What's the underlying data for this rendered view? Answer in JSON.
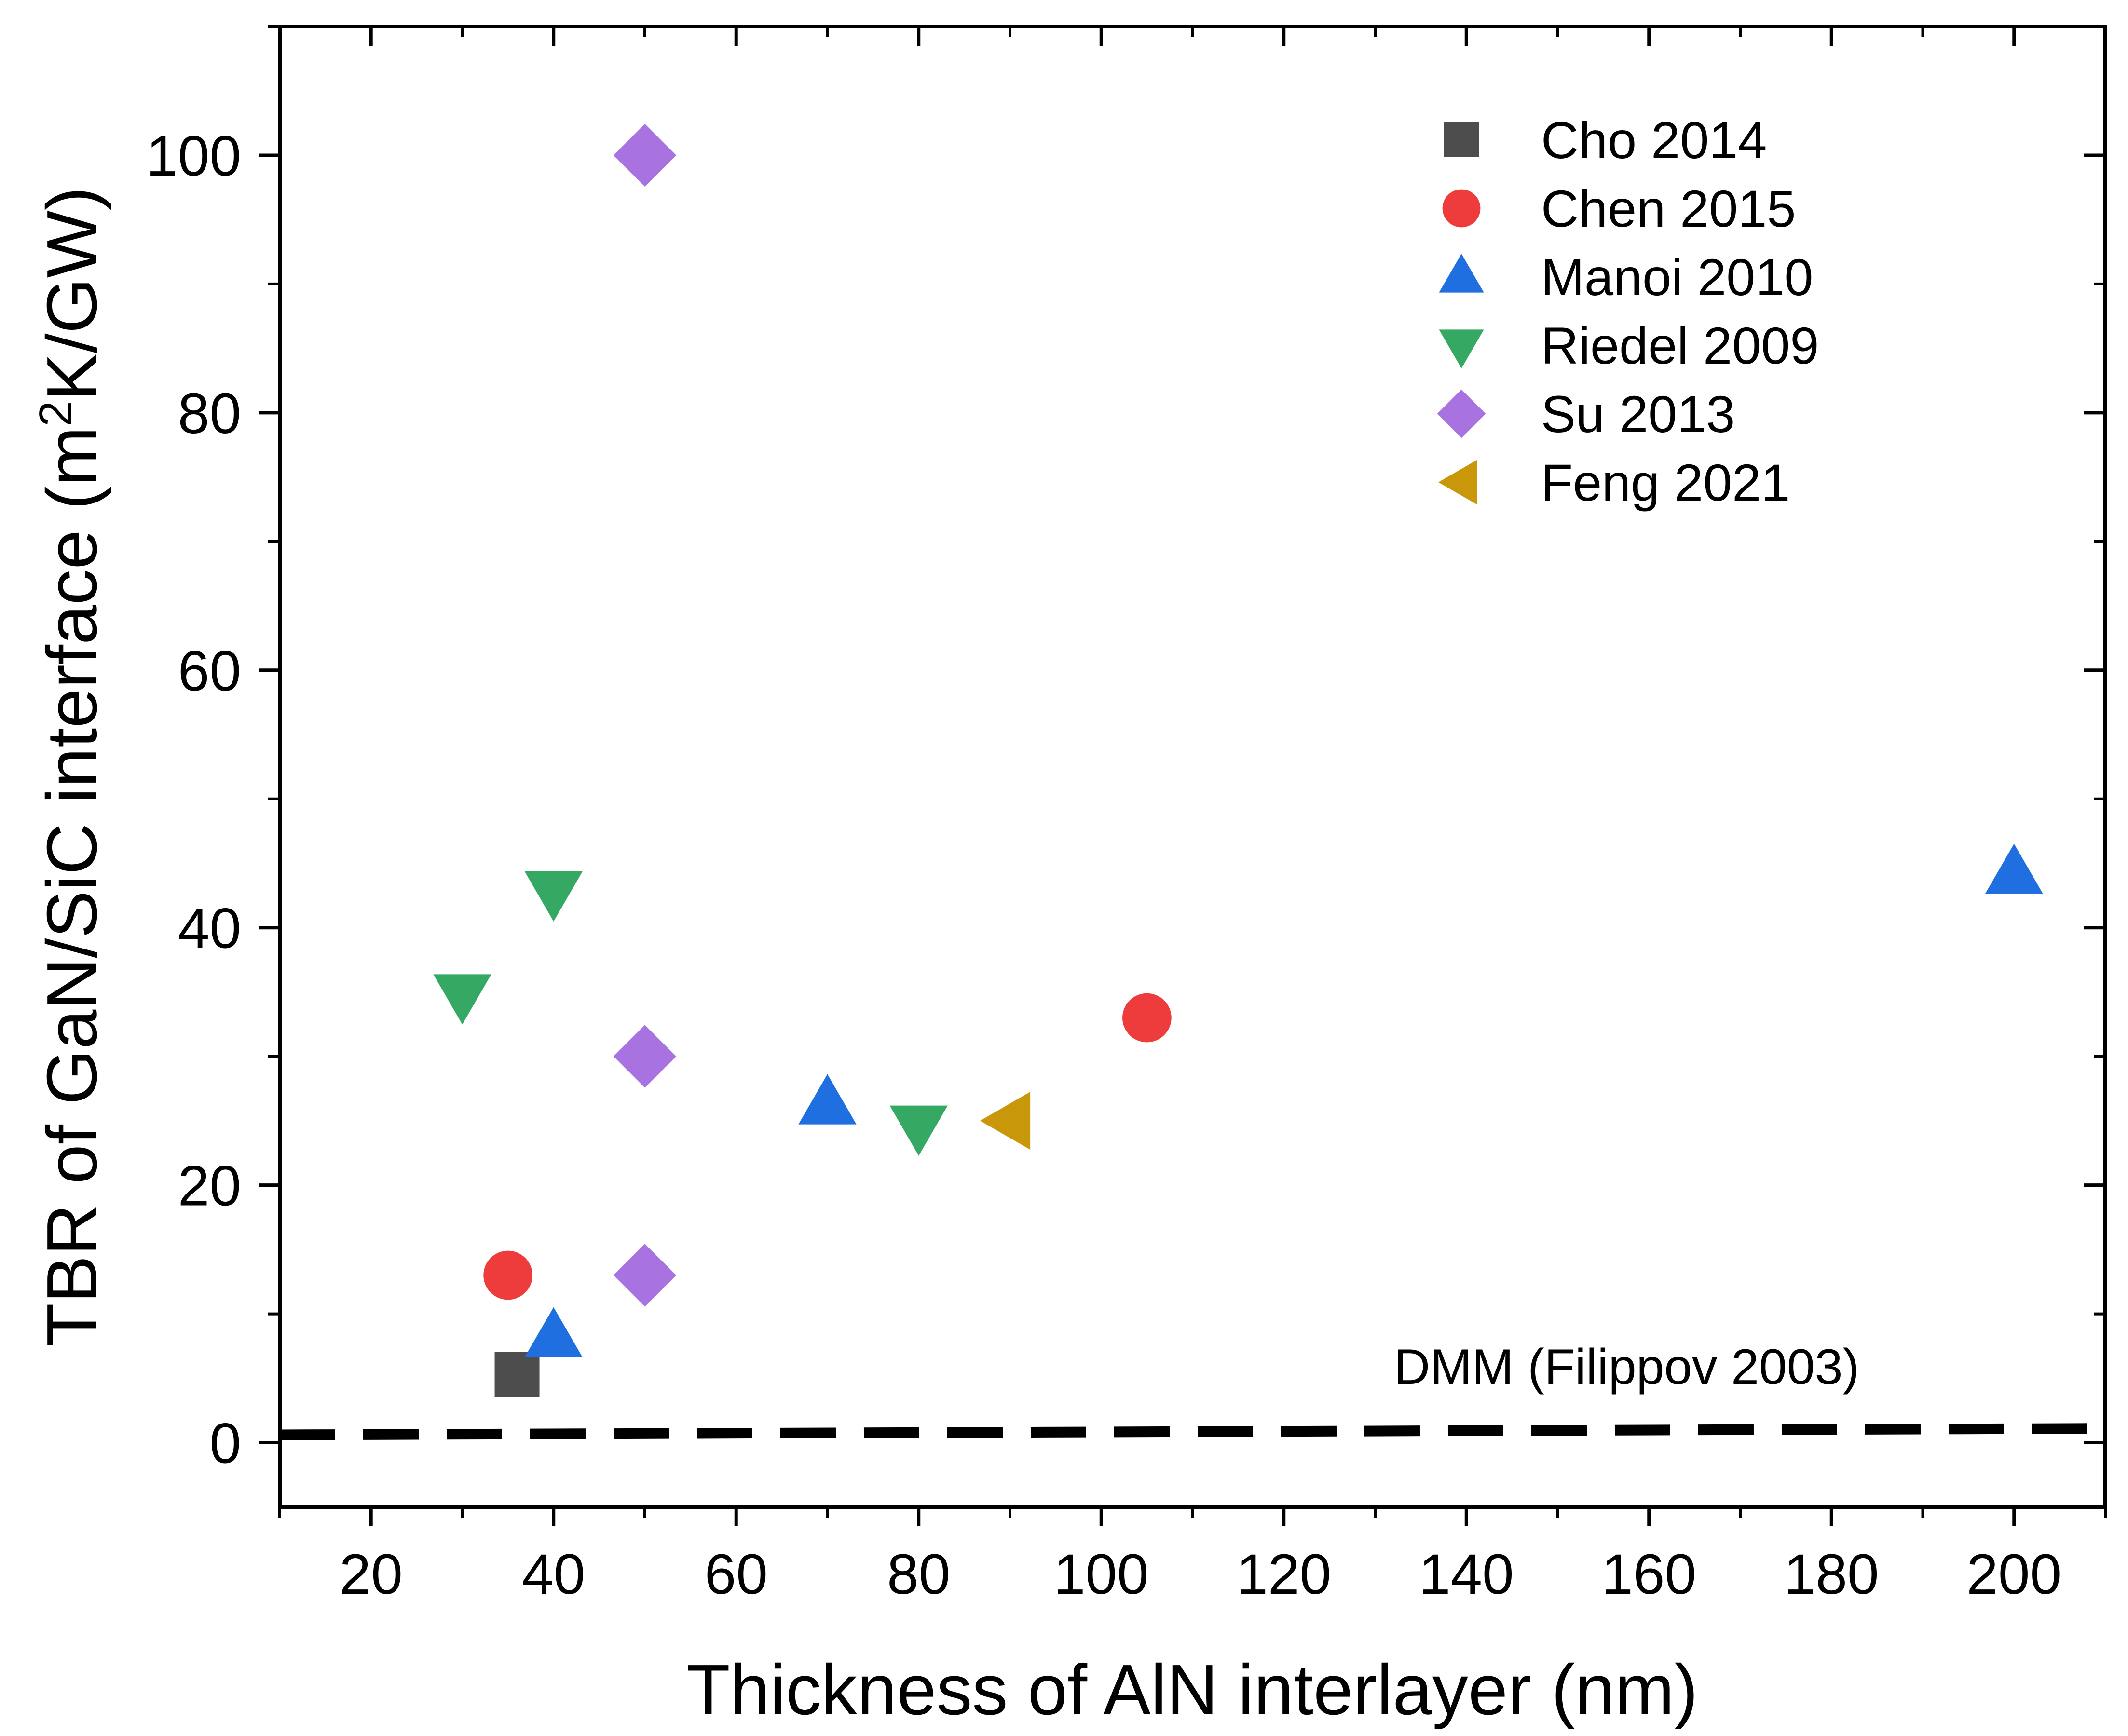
{
  "chart_data": {
    "type": "scatter",
    "title": "",
    "xlabel": "Thickness of AlN interlayer (nm)",
    "ylabel": {
      "prefix": "TBR of GaN/SiC interface (m",
      "superscript": "2",
      "suffix": "K/GW)"
    },
    "xlim": [
      10,
      210
    ],
    "ylim": [
      -5,
      110
    ],
    "x_ticks": [
      20,
      40,
      60,
      80,
      100,
      120,
      140,
      160,
      180,
      200
    ],
    "y_ticks": [
      0,
      20,
      40,
      60,
      80,
      100
    ],
    "legend_position": "top-right",
    "series": [
      {
        "name": "Cho 2014",
        "marker": "square",
        "color": "#4d4d4d",
        "points": [
          [
            36,
            5.3
          ]
        ]
      },
      {
        "name": "Chen 2015",
        "marker": "circle",
        "color": "#ee3b3b",
        "points": [
          [
            35,
            13
          ],
          [
            105,
            33
          ]
        ]
      },
      {
        "name": "Manoi 2010",
        "marker": "triangle-up",
        "color": "#1f6fe0",
        "points": [
          [
            40,
            8.2
          ],
          [
            70,
            26.3
          ],
          [
            200,
            44.2
          ]
        ]
      },
      {
        "name": "Riedel 2009",
        "marker": "triangle-down",
        "color": "#35a864",
        "points": [
          [
            30,
            34.8
          ],
          [
            40,
            42.8
          ],
          [
            80,
            24.6
          ]
        ]
      },
      {
        "name": "Su 2013",
        "marker": "diamond",
        "color": "#a873e0",
        "points": [
          [
            50,
            100
          ],
          [
            50,
            30
          ],
          [
            50,
            13
          ]
        ]
      },
      {
        "name": "Feng 2021",
        "marker": "triangle-left",
        "color": "#c8970a",
        "points": [
          [
            90,
            25
          ]
        ]
      }
    ],
    "reference_line": {
      "label": "DMM (Filippov 2003)",
      "style": "dashed",
      "color": "#000000",
      "points": [
        [
          10,
          0.6
        ],
        [
          210,
          1.1
        ]
      ]
    }
  }
}
